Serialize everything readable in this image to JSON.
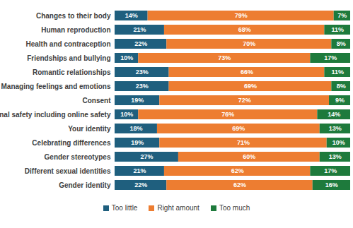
{
  "chart_data": {
    "type": "bar",
    "orientation": "horizontal",
    "stacked": true,
    "data_labels": true,
    "tick_labels": "y",
    "legend": "bottom",
    "categories": [
      "Changes to their body",
      "Human reproduction",
      "Health and contraception",
      "Friendships and bullying",
      "Romantic relationships",
      "Managing feelings and emotions",
      "Consent",
      "Personal safety including online safety",
      "Your identity",
      "Celebrating differences",
      "Gender stereotypes",
      "Different sexual identities",
      "Gender identity"
    ],
    "xlim": [
      0,
      100
    ],
    "series": [
      {
        "name": "Too little",
        "color": "#1f5f7e",
        "values": [
          14,
          21,
          22,
          10,
          23,
          23,
          19,
          10,
          18,
          19,
          27,
          21,
          22
        ],
        "value_labels": [
          "14%",
          "21%",
          "22%",
          "10%",
          "23%",
          "23%",
          "19%",
          "10%",
          "18%",
          "19%",
          "27%",
          "21%",
          "22%"
        ]
      },
      {
        "name": "Right amount",
        "color": "#ed7d31",
        "values": [
          79,
          68,
          70,
          73,
          66,
          69,
          72,
          76,
          69,
          71,
          60,
          62,
          62
        ],
        "value_labels": [
          "79%",
          "68%",
          "70%",
          "73%",
          "66%",
          "69%",
          "72%",
          "76%",
          "69%",
          "71%",
          "60%",
          "62%",
          "62%"
        ]
      },
      {
        "name": "Too much",
        "color": "#1e7a3c",
        "values": [
          7,
          11,
          8,
          17,
          11,
          8,
          9,
          14,
          13,
          10,
          13,
          17,
          16
        ],
        "value_labels": [
          "7%",
          "11%",
          "8%",
          "17%",
          "11%",
          "8%",
          "9%",
          "14%",
          "13%",
          "10%",
          "13%",
          "17%",
          "16%"
        ]
      }
    ]
  }
}
